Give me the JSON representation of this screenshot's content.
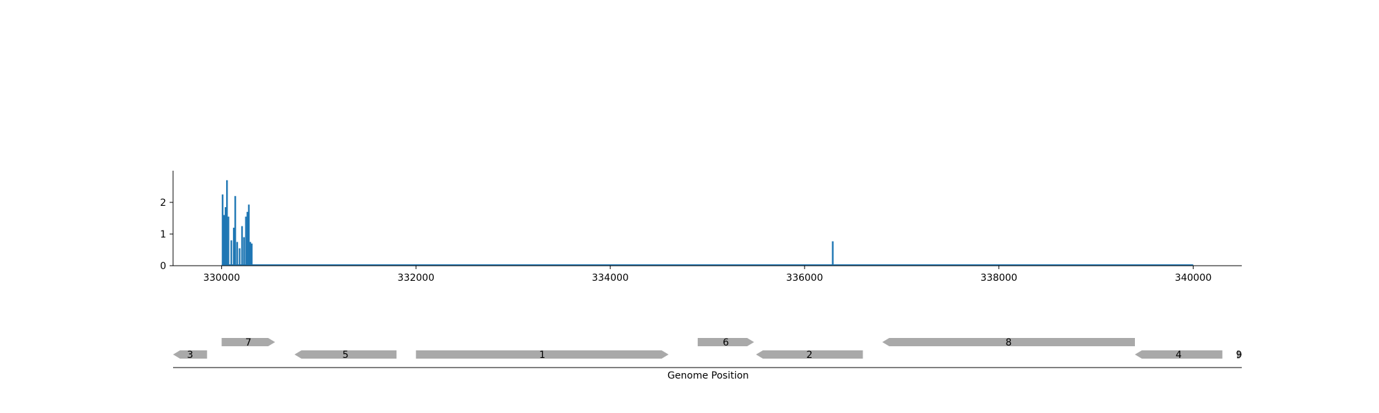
{
  "chart_data": [
    {
      "type": "bar",
      "title": "",
      "xlabel": "",
      "ylabel": "",
      "xlim": [
        329500,
        340500
      ],
      "ylim": [
        0,
        3
      ],
      "xticks": [
        330000,
        332000,
        334000,
        336000,
        338000,
        340000
      ],
      "yticks": [
        0,
        1,
        2
      ],
      "grid": false,
      "bar_color": "#1f77b4",
      "baseline_range": [
        330000,
        340000
      ],
      "x": [
        330010,
        330025,
        330040,
        330055,
        330070,
        330100,
        330125,
        330140,
        330160,
        330185,
        330210,
        330230,
        330250,
        330265,
        330280,
        330295,
        330310,
        336290
      ],
      "values": [
        2.25,
        1.6,
        1.85,
        2.7,
        1.55,
        0.8,
        1.2,
        2.2,
        0.75,
        0.55,
        1.25,
        0.9,
        1.55,
        1.7,
        1.93,
        0.75,
        0.7,
        0.77
      ]
    },
    {
      "type": "gene_track",
      "xlabel": "Genome Position",
      "xlim": [
        329500,
        340500
      ],
      "gene_color": "#a9a9a9",
      "genes": [
        {
          "label": "3",
          "start": 329500,
          "end": 329850,
          "strand": "-",
          "row": 0
        },
        {
          "label": "7",
          "start": 330000,
          "end": 330550,
          "strand": "+",
          "row": 1
        },
        {
          "label": "5",
          "start": 330750,
          "end": 331800,
          "strand": "-",
          "row": 0
        },
        {
          "label": "1",
          "start": 332000,
          "end": 334600,
          "strand": "+",
          "row": 0
        },
        {
          "label": "6",
          "start": 334900,
          "end": 335480,
          "strand": "+",
          "row": 1
        },
        {
          "label": "2",
          "start": 335500,
          "end": 336600,
          "strand": "-",
          "row": 0
        },
        {
          "label": "8",
          "start": 336800,
          "end": 339400,
          "strand": "-",
          "row": 1
        },
        {
          "label": "4",
          "start": 339400,
          "end": 340300,
          "strand": "-",
          "row": 0
        },
        {
          "label": "9",
          "start": 340450,
          "end": 340500,
          "strand": "+",
          "row": 0
        }
      ]
    }
  ]
}
